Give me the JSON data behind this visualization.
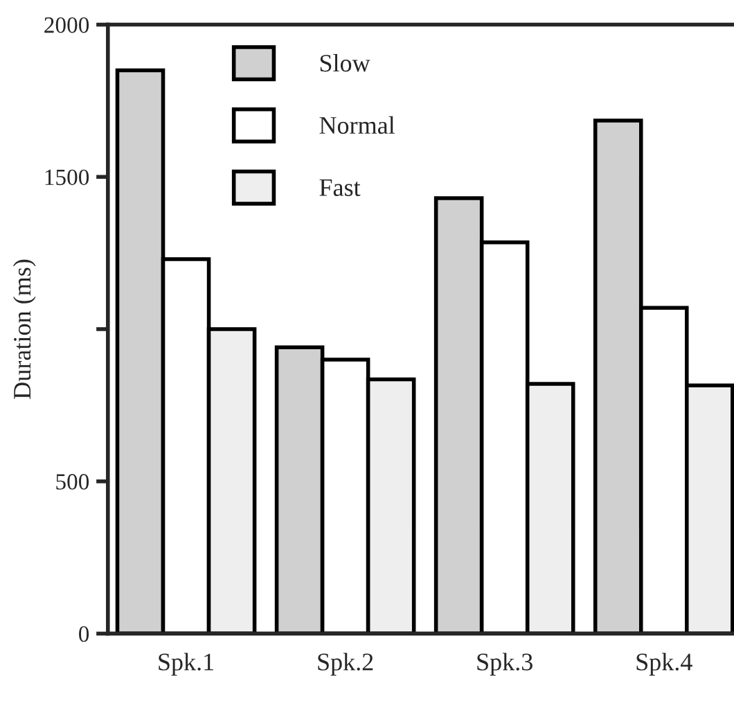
{
  "chart_data": {
    "type": "bar",
    "ylabel": "Duration (ms)",
    "categories": [
      "Spk.1",
      "Spk.2",
      "Spk.3",
      "Spk.4"
    ],
    "series": [
      {
        "name": "Slow",
        "color": "#d0d0d0",
        "values": [
          1850,
          940,
          1430,
          1685
        ]
      },
      {
        "name": "Normal",
        "color": "#ffffff",
        "values": [
          1230,
          900,
          1285,
          1070
        ]
      },
      {
        "name": "Fast",
        "color": "#eeeeee",
        "values": [
          1000,
          835,
          820,
          815
        ]
      }
    ],
    "ylim": [
      0,
      2000
    ],
    "yticks": [
      0,
      500,
      {
        "value": 1000,
        "label": null
      },
      1500,
      2000
    ],
    "legend": "top",
    "grid": false
  }
}
